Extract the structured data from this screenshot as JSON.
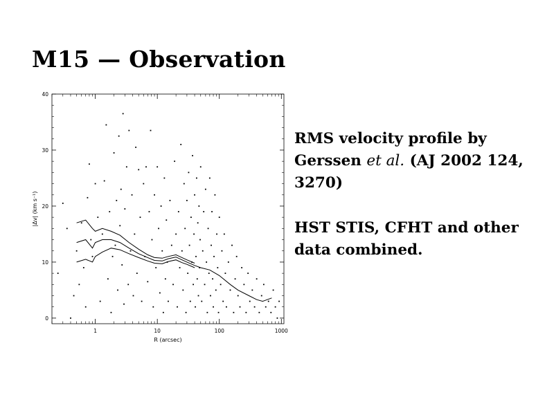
{
  "slide": {
    "title": "M15 — Observation"
  },
  "description": {
    "line1_pre": "RMS velocity profile by Gerssen ",
    "line1_italic": "et al.",
    "line1_post": " (AJ 2002 124, 3270)",
    "line2": "HST STIS, CFHT and other data combined."
  },
  "chart_data": {
    "type": "scatter",
    "xlabel": "R (arcsec)",
    "ylabel": "|Δv| (km s⁻¹)",
    "xscale": "log",
    "xlim": [
      0.2,
      1100
    ],
    "ylim": [
      -1,
      40
    ],
    "xticks": [
      {
        "value": 1,
        "label": "1"
      },
      {
        "value": 10,
        "label": "10"
      },
      {
        "value": 100,
        "label": "100"
      },
      {
        "value": 1000,
        "label": "1000"
      }
    ],
    "yticks": [
      {
        "value": 0,
        "label": "0"
      },
      {
        "value": 10,
        "label": "10"
      },
      {
        "value": 20,
        "label": "20"
      },
      {
        "value": 30,
        "label": "30"
      },
      {
        "value": 40,
        "label": "40"
      }
    ],
    "grid": false,
    "series": [
      {
        "kind": "points",
        "points": [
          [
            0.25,
            8
          ],
          [
            0.3,
            20.5
          ],
          [
            0.35,
            16
          ],
          [
            0.4,
            0
          ],
          [
            0.45,
            4
          ],
          [
            0.5,
            12
          ],
          [
            0.55,
            6
          ],
          [
            0.6,
            17
          ],
          [
            0.65,
            9
          ],
          [
            0.7,
            2
          ],
          [
            0.75,
            21.5
          ],
          [
            0.8,
            27.5
          ],
          [
            0.85,
            14
          ],
          [
            0.9,
            11
          ],
          [
            1.0,
            24
          ],
          [
            1.1,
            18
          ],
          [
            1.2,
            3
          ],
          [
            1.3,
            15
          ],
          [
            1.4,
            24.5
          ],
          [
            1.5,
            34.5
          ],
          [
            1.6,
            7
          ],
          [
            1.7,
            19
          ],
          [
            1.8,
            1
          ],
          [
            1.9,
            11
          ],
          [
            2.0,
            29.5
          ],
          [
            2.1,
            13
          ],
          [
            2.2,
            21
          ],
          [
            2.3,
            5
          ],
          [
            2.4,
            32.5
          ],
          [
            2.5,
            16.5
          ],
          [
            2.6,
            23
          ],
          [
            2.7,
            9.5
          ],
          [
            2.8,
            36.5
          ],
          [
            2.9,
            2.5
          ],
          [
            3.0,
            19.5
          ],
          [
            3.2,
            27
          ],
          [
            3.4,
            6
          ],
          [
            3.5,
            33.5
          ],
          [
            3.7,
            12
          ],
          [
            3.9,
            22
          ],
          [
            4.1,
            4
          ],
          [
            4.3,
            15
          ],
          [
            4.5,
            30.5
          ],
          [
            4.7,
            8
          ],
          [
            5,
            26.5
          ],
          [
            5.3,
            18
          ],
          [
            5.6,
            3
          ],
          [
            6,
            24
          ],
          [
            6.3,
            11
          ],
          [
            6.6,
            27
          ],
          [
            7,
            6.5
          ],
          [
            7.4,
            19
          ],
          [
            7.8,
            33.5
          ],
          [
            8.2,
            14
          ],
          [
            8.6,
            2
          ],
          [
            9,
            22
          ],
          [
            9.5,
            9
          ],
          [
            10,
            27
          ],
          [
            10.5,
            16
          ],
          [
            11,
            4.5
          ],
          [
            11.5,
            20
          ],
          [
            12,
            12
          ],
          [
            12.5,
            1
          ],
          [
            13,
            25
          ],
          [
            13.5,
            7
          ],
          [
            14,
            17.5
          ],
          [
            14.5,
            10
          ],
          [
            15,
            3
          ],
          [
            16,
            21
          ],
          [
            17,
            13
          ],
          [
            18,
            6
          ],
          [
            19,
            28
          ],
          [
            20,
            15
          ],
          [
            21,
            2
          ],
          [
            22,
            19
          ],
          [
            23,
            9
          ],
          [
            24,
            31
          ],
          [
            25,
            12
          ],
          [
            26,
            5
          ],
          [
            27,
            24
          ],
          [
            28,
            16
          ],
          [
            29,
            1
          ],
          [
            30,
            21
          ],
          [
            31,
            8
          ],
          [
            32,
            26
          ],
          [
            33,
            13
          ],
          [
            34,
            3
          ],
          [
            35,
            18
          ],
          [
            36,
            10
          ],
          [
            37,
            29
          ],
          [
            38,
            6
          ],
          [
            39,
            15
          ],
          [
            40,
            22
          ],
          [
            41,
            2
          ],
          [
            42,
            11
          ],
          [
            43,
            25
          ],
          [
            44,
            7
          ],
          [
            45,
            17
          ],
          [
            46,
            4
          ],
          [
            47,
            20
          ],
          [
            48,
            9
          ],
          [
            49,
            14
          ],
          [
            50,
            27
          ],
          [
            52,
            3
          ],
          [
            54,
            12
          ],
          [
            56,
            19
          ],
          [
            58,
            6
          ],
          [
            60,
            23
          ],
          [
            62,
            10
          ],
          [
            64,
            1
          ],
          [
            66,
            16
          ],
          [
            68,
            8
          ],
          [
            70,
            25
          ],
          [
            72,
            4
          ],
          [
            74,
            13
          ],
          [
            76,
            19
          ],
          [
            78,
            7
          ],
          [
            80,
            2
          ],
          [
            82,
            11
          ],
          [
            85,
            22
          ],
          [
            88,
            5
          ],
          [
            91,
            15
          ],
          [
            94,
            9
          ],
          [
            97,
            1
          ],
          [
            100,
            18
          ],
          [
            105,
            6
          ],
          [
            110,
            12
          ],
          [
            115,
            3
          ],
          [
            120,
            15
          ],
          [
            125,
            8
          ],
          [
            130,
            2
          ],
          [
            140,
            10
          ],
          [
            150,
            5
          ],
          [
            160,
            13
          ],
          [
            170,
            1
          ],
          [
            180,
            7
          ],
          [
            190,
            11
          ],
          [
            200,
            4
          ],
          [
            215,
            2
          ],
          [
            230,
            9
          ],
          [
            250,
            6
          ],
          [
            270,
            1
          ],
          [
            290,
            8
          ],
          [
            310,
            3
          ],
          [
            340,
            5
          ],
          [
            370,
            2
          ],
          [
            400,
            7
          ],
          [
            440,
            1
          ],
          [
            480,
            4
          ],
          [
            520,
            6
          ],
          [
            560,
            2
          ],
          [
            620,
            3
          ],
          [
            680,
            1
          ],
          [
            740,
            5
          ],
          [
            800,
            2
          ],
          [
            860,
            0
          ],
          [
            920,
            3
          ]
        ]
      },
      {
        "kind": "line",
        "points": [
          [
            0.5,
            13.5
          ],
          [
            0.7,
            14
          ],
          [
            0.9,
            12.5
          ],
          [
            1.0,
            13.5
          ],
          [
            1.3,
            14
          ],
          [
            1.8,
            14
          ],
          [
            2.5,
            13.5
          ],
          [
            3.5,
            12.5
          ],
          [
            5,
            11.5
          ],
          [
            7,
            10.8
          ],
          [
            9,
            10.3
          ],
          [
            12,
            10.2
          ],
          [
            15,
            10.6
          ],
          [
            20,
            10.9
          ],
          [
            25,
            10.4
          ],
          [
            30,
            10
          ],
          [
            40,
            9.4
          ],
          [
            50,
            9
          ],
          [
            70,
            8.6
          ],
          [
            100,
            7.6
          ],
          [
            150,
            6
          ],
          [
            200,
            5
          ],
          [
            300,
            4
          ],
          [
            400,
            3.3
          ],
          [
            500,
            3
          ],
          [
            700,
            3.6
          ]
        ]
      },
      {
        "kind": "line",
        "points": [
          [
            0.5,
            17
          ],
          [
            0.7,
            17.5
          ],
          [
            0.9,
            16
          ],
          [
            1.0,
            15.5
          ],
          [
            1.3,
            16
          ],
          [
            1.8,
            15.5
          ],
          [
            2.5,
            14.8
          ],
          [
            3.5,
            13.5
          ],
          [
            5,
            12.3
          ],
          [
            7,
            11.3
          ],
          [
            9,
            10.8
          ],
          [
            12,
            10.7
          ],
          [
            15,
            11
          ],
          [
            20,
            11.3
          ],
          [
            25,
            10.8
          ],
          [
            30,
            10.4
          ],
          [
            40,
            9.8
          ]
        ]
      },
      {
        "kind": "line",
        "points": [
          [
            0.5,
            10
          ],
          [
            0.7,
            10.5
          ],
          [
            0.9,
            10
          ],
          [
            1.0,
            11
          ],
          [
            1.3,
            11.8
          ],
          [
            1.8,
            12.5
          ],
          [
            2.5,
            12.2
          ],
          [
            3.5,
            11.5
          ],
          [
            5,
            10.8
          ],
          [
            7,
            10.2
          ],
          [
            9,
            9.8
          ],
          [
            12,
            9.7
          ],
          [
            15,
            10.1
          ],
          [
            20,
            10.4
          ],
          [
            25,
            9.9
          ],
          [
            30,
            9.6
          ],
          [
            40,
            9.0
          ]
        ]
      }
    ]
  }
}
